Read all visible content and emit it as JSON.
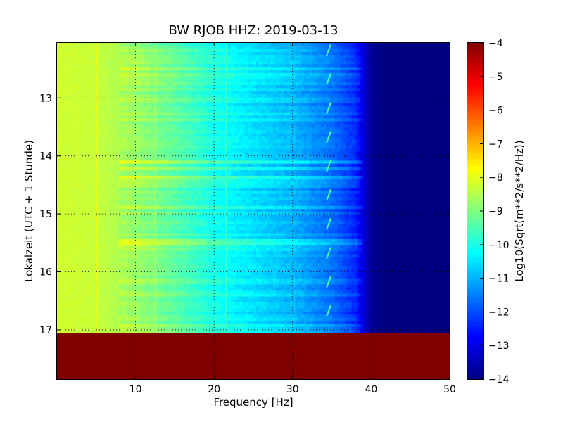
{
  "chart_data": {
    "type": "heatmap",
    "title": "BW RJOB HHZ: 2019-03-13",
    "xlabel": "Frequency [Hz]",
    "ylabel": "Lokalzeit (UTC + 1 Stunde)",
    "colorbar_label": "Log10(Sqrt(m**2/s**2/Hz))",
    "xlim": [
      0,
      50
    ],
    "ylim_hours": [
      12.05,
      17.85
    ],
    "y_inverted": true,
    "x_ticks": [
      10,
      20,
      30,
      40,
      50
    ],
    "x_tick_labels": [
      "10",
      "20",
      "30",
      "40",
      "50"
    ],
    "y_ticks": [
      13,
      14,
      15,
      16,
      17
    ],
    "y_tick_labels": [
      "13",
      "14",
      "15",
      "16",
      "17"
    ],
    "clim": [
      -14,
      -4
    ],
    "colorbar_ticks": [
      -4,
      -5,
      -6,
      -7,
      -8,
      -9,
      -10,
      -11,
      -12,
      -13,
      -14
    ],
    "colorbar_tick_labels": [
      "−4",
      "−5",
      "−6",
      "−7",
      "−8",
      "−9",
      "−10",
      "−11",
      "−12",
      "−13",
      "−14"
    ],
    "colormap": "jet",
    "grid": true,
    "no_data_after_hour": 17.05,
    "no_data_value": -4,
    "spectrum_profile": {
      "frequency_hz": [
        0,
        5,
        10,
        15,
        20,
        25,
        30,
        35,
        38,
        40,
        42,
        45,
        50
      ],
      "log_amplitude": [
        -8.2,
        -8.3,
        -8.7,
        -9.3,
        -10.0,
        -10.5,
        -10.9,
        -11.6,
        -12.3,
        -13.8,
        -14,
        -14,
        -14
      ]
    },
    "spectral_lines_hz": [
      5.0,
      12.5,
      21.5
    ],
    "recurring_features_hz": [
      34.5
    ]
  }
}
